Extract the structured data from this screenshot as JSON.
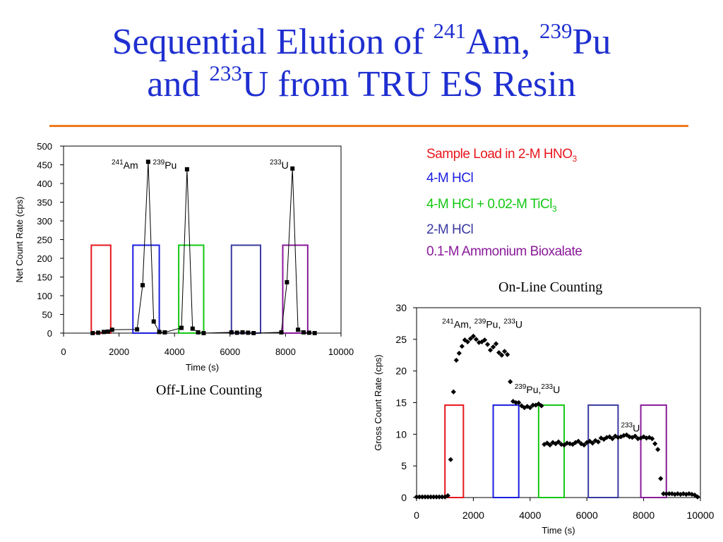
{
  "title": {
    "line1_text": "Sequential Elution of ",
    "am_mass": "241",
    "am_symbol": "Am, ",
    "pu_mass": "239",
    "pu_symbol": "Pu",
    "line2_and": "and ",
    "u_mass": "233",
    "u_rest": "U from TRU ES Resin"
  },
  "legend": [
    {
      "text": "Sample Load in 2-M HNO",
      "sub": "3",
      "color": "#e8161c"
    },
    {
      "text": "4-M HCl",
      "sub": "",
      "color": "#1a1ee0"
    },
    {
      "text": "4-M HCl + 0.02-M TiCl",
      "sub": "3",
      "color": "#14c814"
    },
    {
      "text": "2-M HCl",
      "sub": "",
      "color": "#3a3aa0"
    },
    {
      "text": "0.1-M Ammonium Bioxalate",
      "sub": "",
      "color": "#8a1a9a"
    }
  ],
  "captions": {
    "offline": "Off-Line Counting",
    "online": "On-Line Counting"
  },
  "chart_data": [
    {
      "type": "line",
      "name": "offline",
      "xlabel": "Time (s)",
      "ylabel": "Net Count Rate (cps)",
      "xlim": [
        0,
        10000
      ],
      "ylim": [
        0,
        500
      ],
      "xticks": [
        0,
        2000,
        4000,
        6000,
        8000,
        10000
      ],
      "yticks": [
        0,
        50,
        100,
        150,
        200,
        250,
        300,
        350,
        400,
        450,
        500
      ],
      "series": [
        {
          "points": [
            [
              1050,
              0
            ],
            [
              1250,
              1
            ],
            [
              1450,
              3
            ],
            [
              1600,
              4
            ],
            [
              1750,
              9
            ],
            [
              2650,
              10
            ],
            [
              2850,
              128
            ],
            [
              3050,
              458
            ],
            [
              3250,
              31
            ],
            [
              3450,
              3
            ],
            [
              3650,
              2
            ],
            [
              4250,
              14
            ],
            [
              4450,
              438
            ],
            [
              4650,
              12
            ],
            [
              4850,
              2
            ],
            [
              5050,
              0
            ],
            [
              6050,
              2
            ],
            [
              6250,
              1
            ],
            [
              6450,
              2
            ],
            [
              6650,
              1
            ],
            [
              6850,
              0
            ],
            [
              7850,
              2
            ],
            [
              8050,
              136
            ],
            [
              8250,
              440
            ],
            [
              8450,
              9
            ],
            [
              8650,
              2
            ],
            [
              8850,
              1
            ],
            [
              9050,
              0
            ]
          ]
        }
      ],
      "boxes": [
        {
          "x": [
            1000,
            1700
          ],
          "y": [
            0,
            235
          ],
          "color": "#e8161c"
        },
        {
          "x": [
            2500,
            3450
          ],
          "y": [
            0,
            235
          ],
          "color": "#1a1ee0"
        },
        {
          "x": [
            4150,
            5050
          ],
          "y": [
            0,
            235
          ],
          "color": "#14c814"
        },
        {
          "x": [
            6050,
            7100
          ],
          "y": [
            0,
            235
          ],
          "color": "#3a3aa0"
        },
        {
          "x": [
            7900,
            8800
          ],
          "y": [
            0,
            235
          ],
          "color": "#8a1a9a"
        }
      ],
      "annotations": [
        {
          "parts": [
            {
              "sup": "241"
            },
            {
              "text": "Am"
            }
          ],
          "x": 1730,
          "y": 440
        },
        {
          "parts": [
            {
              "sup": "239"
            },
            {
              "text": "Pu"
            }
          ],
          "x": 3220,
          "y": 440
        },
        {
          "parts": [
            {
              "sup": "233"
            },
            {
              "text": "U"
            }
          ],
          "x": 7430,
          "y": 440
        }
      ]
    },
    {
      "type": "scatter",
      "name": "online",
      "xlabel": "Time (s)",
      "ylabel": "Gross Count Rate (cps)",
      "xlim": [
        0,
        10000
      ],
      "ylim": [
        0,
        30
      ],
      "xticks": [
        0,
        2000,
        4000,
        6000,
        8000,
        10000
      ],
      "yticks": [
        0,
        5,
        10,
        15,
        20,
        25,
        30
      ],
      "series": [
        {
          "points": [
            [
              0,
              0.1
            ],
            [
              100,
              0.1
            ],
            [
              200,
              0.1
            ],
            [
              300,
              0.1
            ],
            [
              400,
              0.1
            ],
            [
              500,
              0.1
            ],
            [
              600,
              0.1
            ],
            [
              700,
              0.1
            ],
            [
              800,
              0.1
            ],
            [
              900,
              0.1
            ],
            [
              1000,
              0.1
            ],
            [
              1100,
              0.3
            ],
            [
              1200,
              6
            ],
            [
              1300,
              16.7
            ],
            [
              1400,
              21.7
            ],
            [
              1500,
              22.8
            ],
            [
              1600,
              23.9
            ],
            [
              1700,
              24.9
            ],
            [
              1800,
              24.6
            ],
            [
              1900,
              25.1
            ],
            [
              2000,
              25.5
            ],
            [
              2100,
              25.0
            ],
            [
              2200,
              24.5
            ],
            [
              2300,
              24.6
            ],
            [
              2400,
              24.9
            ],
            [
              2500,
              24.2
            ],
            [
              2600,
              23.3
            ],
            [
              2700,
              23.8
            ],
            [
              2800,
              24.3
            ],
            [
              2900,
              22.9
            ],
            [
              3000,
              22.5
            ],
            [
              3100,
              23.1
            ],
            [
              3200,
              22.6
            ],
            [
              3300,
              18.3
            ],
            [
              3400,
              15.2
            ],
            [
              3500,
              15.0
            ],
            [
              3600,
              15.0
            ],
            [
              3700,
              14.5
            ],
            [
              3800,
              14.2
            ],
            [
              3900,
              14.4
            ],
            [
              4000,
              14.2
            ],
            [
              4100,
              14.6
            ],
            [
              4200,
              14.6
            ],
            [
              4300,
              14.8
            ],
            [
              4400,
              14.5
            ],
            [
              4500,
              8.4
            ],
            [
              4600,
              8.6
            ],
            [
              4700,
              8.3
            ],
            [
              4800,
              8.7
            ],
            [
              4900,
              8.5
            ],
            [
              5000,
              8.8
            ],
            [
              5100,
              8.4
            ],
            [
              5200,
              8.3
            ],
            [
              5300,
              8.6
            ],
            [
              5400,
              8.5
            ],
            [
              5500,
              8.4
            ],
            [
              5600,
              8.7
            ],
            [
              5700,
              8.9
            ],
            [
              5800,
              8.5
            ],
            [
              5900,
              8.3
            ],
            [
              6000,
              8.7
            ],
            [
              6100,
              8.9
            ],
            [
              6200,
              8.6
            ],
            [
              6300,
              9.0
            ],
            [
              6400,
              8.8
            ],
            [
              6500,
              9.4
            ],
            [
              6600,
              9.2
            ],
            [
              6700,
              9.5
            ],
            [
              6800,
              9.6
            ],
            [
              6900,
              9.3
            ],
            [
              7000,
              9.7
            ],
            [
              7100,
              9.5
            ],
            [
              7200,
              9.6
            ],
            [
              7300,
              9.8
            ],
            [
              7400,
              9.9
            ],
            [
              7500,
              9.6
            ],
            [
              7600,
              9.5
            ],
            [
              7700,
              9.7
            ],
            [
              7800,
              9.3
            ],
            [
              7900,
              9.4
            ],
            [
              8000,
              9.6
            ],
            [
              8100,
              9.4
            ],
            [
              8200,
              9.5
            ],
            [
              8300,
              9.3
            ],
            [
              8400,
              8.5
            ],
            [
              8500,
              7.6
            ],
            [
              8600,
              3.0
            ],
            [
              8700,
              0.6
            ],
            [
              8800,
              0.6
            ],
            [
              8900,
              0.6
            ],
            [
              9000,
              0.6
            ],
            [
              9100,
              0.5
            ],
            [
              9200,
              0.6
            ],
            [
              9300,
              0.5
            ],
            [
              9400,
              0.6
            ],
            [
              9500,
              0.5
            ],
            [
              9600,
              0.6
            ],
            [
              9700,
              0.5
            ],
            [
              9800,
              0.4
            ],
            [
              9900,
              0.1
            ]
          ]
        }
      ],
      "boxes": [
        {
          "x": [
            1000,
            1650
          ],
          "y": [
            0,
            14.6
          ],
          "color": "#e8161c"
        },
        {
          "x": [
            2700,
            3600
          ],
          "y": [
            0,
            14.6
          ],
          "color": "#1a1ee0"
        },
        {
          "x": [
            4300,
            5200
          ],
          "y": [
            0,
            14.6
          ],
          "color": "#14c814"
        },
        {
          "x": [
            6050,
            7100
          ],
          "y": [
            0,
            14.6
          ],
          "color": "#3a3aa0"
        },
        {
          "x": [
            7900,
            8800
          ],
          "y": [
            0,
            14.6
          ],
          "color": "#8a1a9a"
        }
      ],
      "annotations": [
        {
          "parts": [
            {
              "sup": "241"
            },
            {
              "text": "Am, "
            },
            {
              "sup": "239"
            },
            {
              "text": "Pu, "
            },
            {
              "sup": "233"
            },
            {
              "text": "U"
            }
          ],
          "x": 900,
          "y": 26.8
        },
        {
          "parts": [
            {
              "sup": "239"
            },
            {
              "text": "Pu,"
            },
            {
              "sup": "233"
            },
            {
              "text": "U"
            }
          ],
          "x": 3450,
          "y": 16.5
        },
        {
          "parts": [
            {
              "sup": "233"
            },
            {
              "text": "U"
            }
          ],
          "x": 7200,
          "y": 10.4
        }
      ]
    }
  ]
}
